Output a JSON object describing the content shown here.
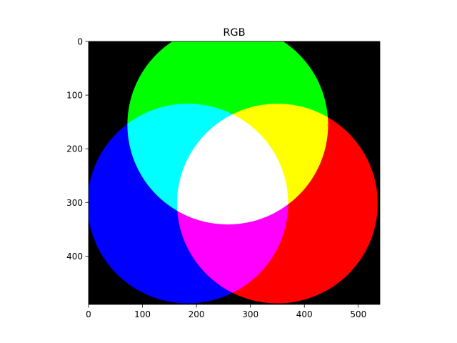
{
  "chart_data": {
    "type": "image",
    "title": "RGB",
    "xlabel": "",
    "ylabel": "",
    "xlim": [
      0,
      540
    ],
    "ylim": [
      490,
      0
    ],
    "y_inverted": true,
    "x_ticks": [
      0,
      100,
      200,
      300,
      400,
      500
    ],
    "y_ticks": [
      0,
      100,
      200,
      300,
      400
    ],
    "background_color": "#000000",
    "grid": false,
    "legend": "none",
    "circles": [
      {
        "channel": "red",
        "color": "#ff0000",
        "cx": 350,
        "cy": 302,
        "r": 186
      },
      {
        "channel": "green",
        "color": "#00ff00",
        "cx": 258,
        "cy": 155,
        "r": 186
      },
      {
        "channel": "blue",
        "color": "#0000ff",
        "cx": 184,
        "cy": 302,
        "r": 186
      }
    ],
    "overlap_colors": {
      "red_green": "#ffff00",
      "green_blue": "#00ffff",
      "red_blue": "#ff00ff",
      "red_green_blue": "#ffffff"
    }
  }
}
